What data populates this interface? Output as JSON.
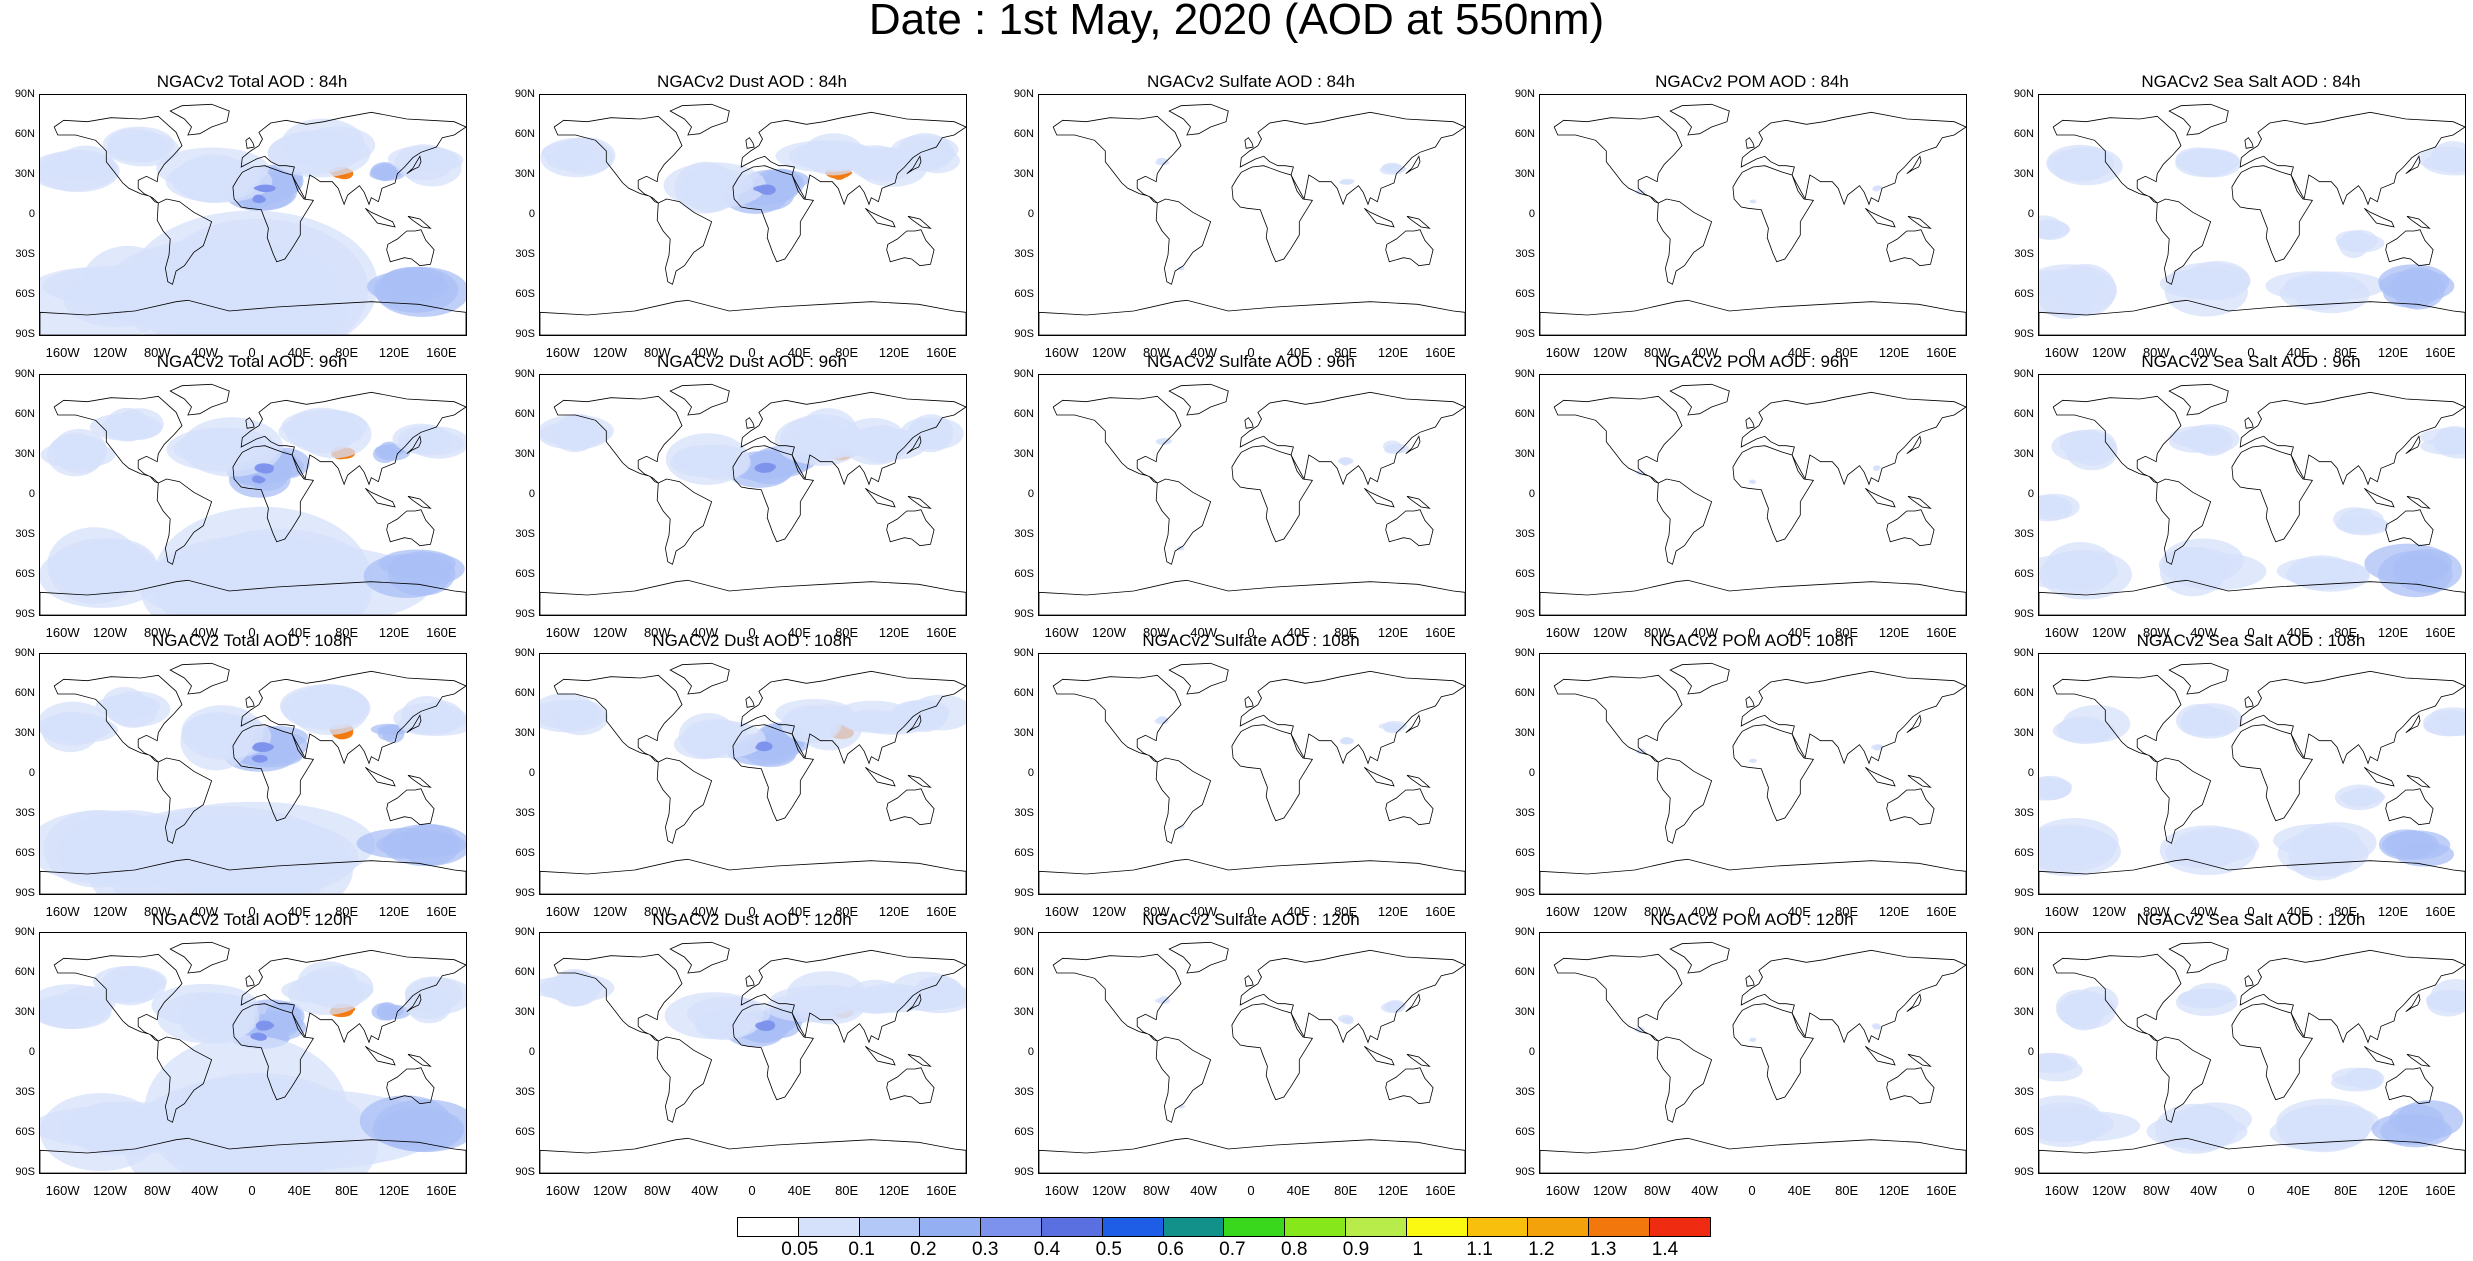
{
  "title": "Date : 1st May, 2020 (AOD at 550nm)",
  "lat_labels": [
    "90N",
    "60N",
    "30N",
    "0",
    "30S",
    "60S",
    "90S"
  ],
  "lon_labels": [
    "160W",
    "120W",
    "80W",
    "40W",
    "0",
    "40E",
    "80E",
    "120E",
    "160E"
  ],
  "rows": [
    {
      "panels": [
        {
          "title": "NGACv2 Total AOD : 84h",
          "species": "total"
        },
        {
          "title": "NGACv2 Dust AOD : 84h",
          "species": "dust"
        },
        {
          "title": "NGACv2 Sulfate AOD : 84h",
          "species": "sulfate"
        },
        {
          "title": "NGACv2 POM AOD : 84h",
          "species": "pom"
        },
        {
          "title": "NGACv2 Sea Salt AOD : 84h",
          "species": "seasalt"
        }
      ]
    },
    {
      "panels": [
        {
          "title": "NGACv2 Total AOD : 96h",
          "species": "total"
        },
        {
          "title": "NGACv2 Dust AOD : 96h",
          "species": "dust"
        },
        {
          "title": "NGACv2 Sulfate AOD : 96h",
          "species": "sulfate"
        },
        {
          "title": "NGACv2 POM AOD : 96h",
          "species": "pom"
        },
        {
          "title": "NGACv2 Sea Salt AOD : 96h",
          "species": "seasalt"
        }
      ]
    },
    {
      "panels": [
        {
          "title": "NGACv2 Total AOD : 108h",
          "species": "total"
        },
        {
          "title": "NGACv2 Dust AOD : 108h",
          "species": "dust"
        },
        {
          "title": "NGACv2 Sulfate AOD : 108h",
          "species": "sulfate"
        },
        {
          "title": "NGACv2 POM AOD : 108h",
          "species": "pom"
        },
        {
          "title": "NGACv2 Sea Salt AOD : 108h",
          "species": "seasalt"
        }
      ]
    },
    {
      "panels": [
        {
          "title": "NGACv2 Total AOD : 120h",
          "species": "total"
        },
        {
          "title": "NGACv2 Dust AOD : 120h",
          "species": "dust"
        },
        {
          "title": "NGACv2 Sulfate AOD : 120h",
          "species": "sulfate"
        },
        {
          "title": "NGACv2 POM AOD : 120h",
          "species": "pom"
        },
        {
          "title": "NGACv2 Sea Salt  AOD : 120h",
          "species": "seasalt"
        }
      ]
    }
  ],
  "colorbar": {
    "labels": [
      "0.05",
      "0.1",
      "0.2",
      "0.3",
      "0.4",
      "0.5",
      "0.6",
      "0.7",
      "0.8",
      "0.9",
      "1",
      "1.1",
      "1.2",
      "1.3",
      "1.4"
    ],
    "colors": [
      "#ffffff",
      "#d5e0fb",
      "#b3c8f7",
      "#95b0f2",
      "#7d92ec",
      "#5a6fe0",
      "#1e5ee6",
      "#12908a",
      "#3ad81c",
      "#86e81a",
      "#b8ec4a",
      "#fbf912",
      "#f8c00c",
      "#f4a20c",
      "#f2780e",
      "#ef2c12"
    ]
  },
  "colors": {
    "coast": "#000000",
    "low": "#d5e0fb",
    "mid": "#a9bff5",
    "high": "#7d92ec",
    "peak": "#f2780e"
  }
}
